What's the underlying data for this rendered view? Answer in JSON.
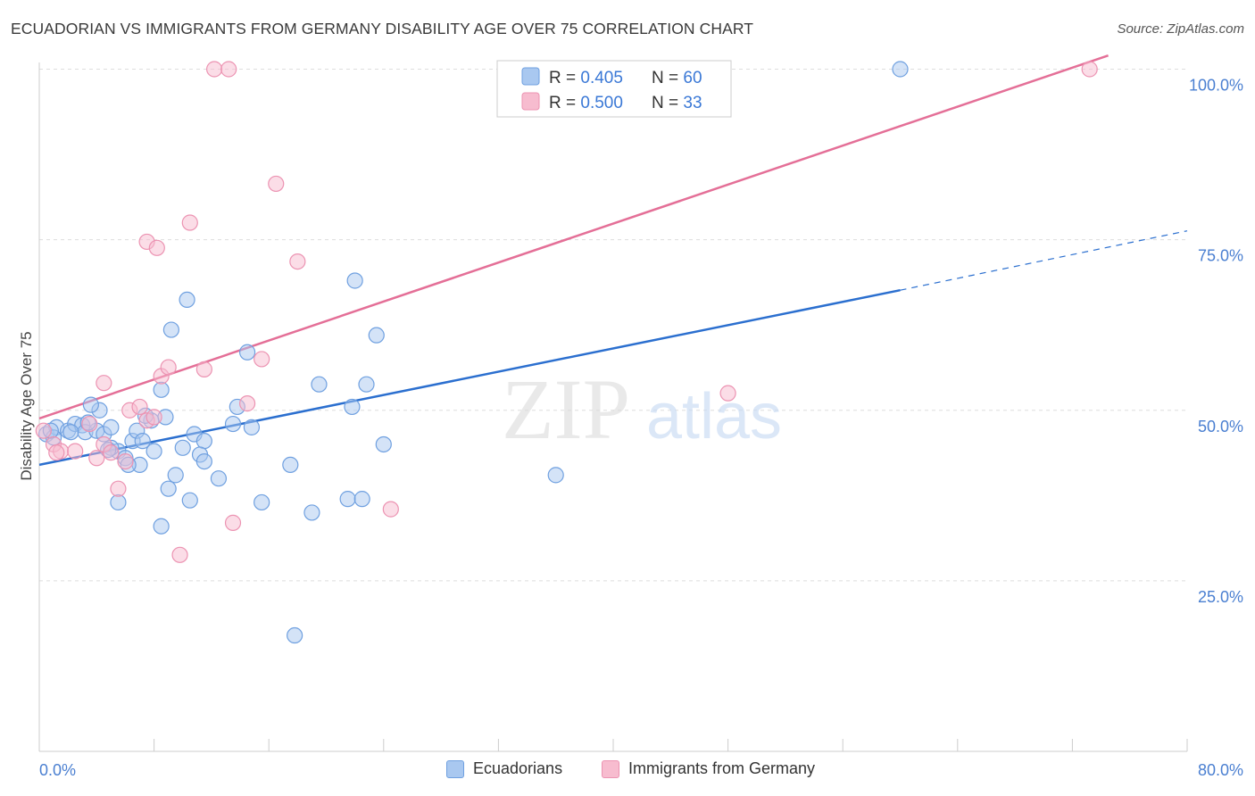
{
  "header": {
    "title": "ECUADORIAN VS IMMIGRANTS FROM GERMANY DISABILITY AGE OVER 75 CORRELATION CHART",
    "source": "Source: ZipAtlas.com"
  },
  "colors": {
    "blue_fill": "#a9c8f0",
    "blue_stroke": "#6fa0e0",
    "blue_line": "#2b6fcf",
    "pink_fill": "#f7bccf",
    "pink_stroke": "#ec93b2",
    "pink_line": "#e46f97",
    "axis_text": "#4a7fd1",
    "grid": "#dddddd"
  },
  "watermark": {
    "zip": "ZIP",
    "atlas": "atlas"
  },
  "stats_legend": [
    {
      "r_label": "R = ",
      "r_value": "0.405",
      "n_label": "N = ",
      "n_value": "60"
    },
    {
      "r_label": "R = ",
      "r_value": "0.500",
      "n_label": "N = ",
      "n_value": "33"
    }
  ],
  "chart_data": {
    "type": "scatter",
    "title": "ECUADORIAN VS IMMIGRANTS FROM GERMANY DISABILITY AGE OVER 75 CORRELATION CHART",
    "xlabel": "",
    "ylabel": "Disability Age Over 75",
    "xlim": [
      0,
      80
    ],
    "ylim": [
      0,
      102
    ],
    "x_tick_labels": [
      "0.0%",
      "80.0%"
    ],
    "y_ticks": [
      25,
      50,
      75,
      100
    ],
    "y_tick_labels": [
      "25.0%",
      "50.0%",
      "75.0%",
      "100.0%"
    ],
    "legend_position": "bottom",
    "series": [
      {
        "name": "Ecuadorians",
        "r": 0.405,
        "n": 60,
        "trend": {
          "x0": 0,
          "y0": 42.0,
          "x1": 60,
          "y1": 67.6,
          "dashed_to_x": 80,
          "dashed_to_y": 76.3
        },
        "points": [
          [
            0.5,
            46.5
          ],
          [
            1.2,
            47.5
          ],
          [
            1.0,
            46.0
          ],
          [
            2.0,
            47.0
          ],
          [
            2.5,
            48.0
          ],
          [
            3.0,
            47.8
          ],
          [
            3.2,
            46.8
          ],
          [
            4.0,
            47.0
          ],
          [
            4.5,
            46.5
          ],
          [
            5.0,
            47.5
          ],
          [
            4.2,
            50.0
          ],
          [
            3.6,
            50.8
          ],
          [
            5.5,
            44.0
          ],
          [
            5.0,
            44.5
          ],
          [
            6.0,
            43.0
          ],
          [
            6.5,
            45.5
          ],
          [
            6.8,
            47.0
          ],
          [
            7.2,
            45.5
          ],
          [
            7.0,
            42.0
          ],
          [
            6.2,
            42.0
          ],
          [
            8.0,
            44.0
          ],
          [
            8.5,
            53.0
          ],
          [
            8.8,
            49.0
          ],
          [
            7.8,
            48.5
          ],
          [
            9.0,
            38.5
          ],
          [
            9.5,
            40.5
          ],
          [
            10.0,
            44.5
          ],
          [
            10.8,
            46.5
          ],
          [
            11.5,
            45.5
          ],
          [
            11.2,
            43.5
          ],
          [
            10.5,
            36.8
          ],
          [
            8.5,
            33.0
          ],
          [
            5.5,
            36.5
          ],
          [
            9.2,
            61.8
          ],
          [
            10.3,
            66.2
          ],
          [
            12.5,
            40.0
          ],
          [
            13.5,
            48.0
          ],
          [
            13.8,
            50.5
          ],
          [
            14.5,
            58.5
          ],
          [
            14.8,
            47.5
          ],
          [
            15.5,
            36.5
          ],
          [
            17.5,
            42.0
          ],
          [
            19.0,
            35.0
          ],
          [
            21.5,
            37.0
          ],
          [
            22.5,
            37.0
          ],
          [
            23.5,
            61.0
          ],
          [
            22.0,
            69.0
          ],
          [
            21.8,
            50.5
          ],
          [
            22.8,
            53.8
          ],
          [
            24.0,
            45.0
          ],
          [
            19.5,
            53.8
          ],
          [
            17.8,
            17.0
          ],
          [
            36.0,
            40.5
          ],
          [
            60.0,
            100.0
          ],
          [
            11.5,
            42.5
          ],
          [
            4.8,
            44.2
          ],
          [
            2.2,
            46.8
          ],
          [
            0.8,
            47.0
          ],
          [
            3.4,
            48.2
          ],
          [
            7.4,
            49.2
          ]
        ]
      },
      {
        "name": "Immigrants from Germany",
        "r": 0.5,
        "n": 33,
        "trend": {
          "x0": 0,
          "y0": 48.8,
          "x1": 74.5,
          "y1": 102.0
        },
        "points": [
          [
            0.3,
            47.0
          ],
          [
            1.0,
            45.0
          ],
          [
            1.5,
            44.0
          ],
          [
            2.5,
            44.0
          ],
          [
            3.5,
            48.0
          ],
          [
            4.0,
            43.0
          ],
          [
            4.5,
            45.0
          ],
          [
            5.0,
            43.8
          ],
          [
            5.5,
            38.5
          ],
          [
            6.0,
            42.5
          ],
          [
            6.3,
            50.0
          ],
          [
            7.0,
            50.5
          ],
          [
            7.5,
            48.5
          ],
          [
            8.0,
            49.0
          ],
          [
            8.5,
            55.0
          ],
          [
            9.0,
            56.3
          ],
          [
            10.5,
            77.5
          ],
          [
            7.5,
            74.7
          ],
          [
            8.2,
            73.8
          ],
          [
            12.2,
            100.0
          ],
          [
            13.2,
            100.0
          ],
          [
            11.5,
            56.0
          ],
          [
            13.5,
            33.5
          ],
          [
            16.5,
            83.2
          ],
          [
            18.0,
            71.8
          ],
          [
            14.5,
            51.0
          ],
          [
            15.5,
            57.5
          ],
          [
            9.8,
            28.8
          ],
          [
            24.5,
            35.5
          ],
          [
            4.5,
            54.0
          ],
          [
            48.0,
            52.5
          ],
          [
            73.2,
            100.0
          ],
          [
            1.2,
            43.8
          ]
        ]
      }
    ]
  }
}
